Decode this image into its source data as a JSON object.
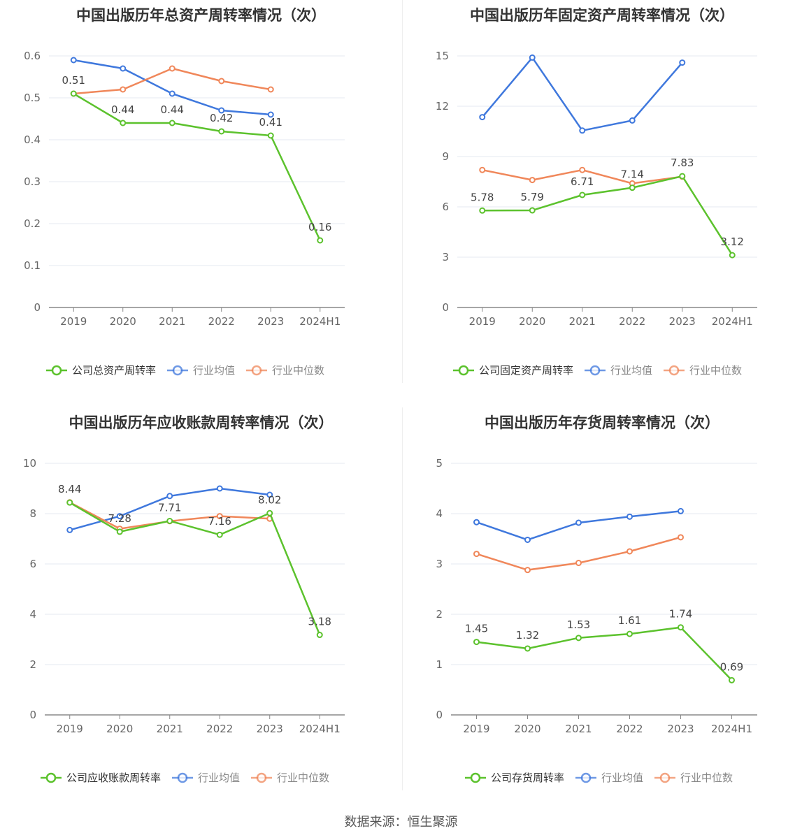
{
  "source": "数据来源：恒生聚源",
  "colors": {
    "company": "#5cc22d",
    "industry_avg": "#3f78dd",
    "industry_median": "#f0875a"
  },
  "chart_data": [
    {
      "type": "line",
      "title": "中国出版历年总资产周转率情况（次）",
      "categories": [
        "2019",
        "2020",
        "2021",
        "2022",
        "2023",
        "2024H1"
      ],
      "ylim": [
        0,
        0.6
      ],
      "yticks": [
        "0",
        "0.1",
        "0.2",
        "0.3",
        "0.4",
        "0.5",
        "0.6"
      ],
      "series": [
        {
          "name": "公司总资产周转率",
          "color": "#5cc22d",
          "values": [
            0.51,
            0.44,
            0.44,
            0.42,
            0.41,
            0.16
          ],
          "labels": [
            "0.51",
            "0.44",
            "0.44",
            "0.42",
            "0.41",
            "0.16"
          ]
        },
        {
          "name": "行业均值",
          "color": "#3f78dd",
          "values": [
            0.59,
            0.57,
            0.51,
            0.47,
            0.46,
            null
          ]
        },
        {
          "name": "行业中位数",
          "color": "#f0875a",
          "values": [
            0.51,
            0.52,
            0.57,
            0.54,
            0.52,
            null
          ]
        }
      ]
    },
    {
      "type": "line",
      "title": "中国出版历年固定资产周转率情况（次）",
      "categories": [
        "2019",
        "2020",
        "2021",
        "2022",
        "2023",
        "2024H1"
      ],
      "ylim": [
        0,
        15
      ],
      "yticks": [
        "0",
        "3",
        "6",
        "9",
        "12",
        "15"
      ],
      "series": [
        {
          "name": "公司固定资产周转率",
          "color": "#5cc22d",
          "values": [
            5.78,
            5.79,
            6.71,
            7.14,
            7.83,
            3.12
          ],
          "labels": [
            "5.78",
            "5.79",
            "6.71",
            "7.14",
            "7.83",
            "3.12"
          ]
        },
        {
          "name": "行业均值",
          "color": "#3f78dd",
          "values": [
            11.35,
            14.9,
            10.55,
            11.15,
            14.6,
            null
          ]
        },
        {
          "name": "行业中位数",
          "color": "#f0875a",
          "values": [
            8.2,
            7.6,
            8.2,
            7.4,
            7.8,
            null
          ]
        }
      ]
    },
    {
      "type": "line",
      "title": "中国出版历年应收账款周转率情况（次）",
      "categories": [
        "2019",
        "2020",
        "2021",
        "2022",
        "2023",
        "2024H1"
      ],
      "ylim": [
        0,
        10
      ],
      "yticks": [
        "0",
        "2",
        "4",
        "6",
        "8",
        "10"
      ],
      "series": [
        {
          "name": "公司应收账款周转率",
          "color": "#5cc22d",
          "values": [
            8.44,
            7.28,
            7.71,
            7.16,
            8.02,
            3.18
          ],
          "labels": [
            "8.44",
            "7.28",
            "7.71",
            "7.16",
            "8.02",
            "3.18"
          ]
        },
        {
          "name": "行业均值",
          "color": "#3f78dd",
          "values": [
            7.35,
            7.9,
            8.7,
            9.0,
            8.75,
            null
          ]
        },
        {
          "name": "行业中位数",
          "color": "#f0875a",
          "values": [
            8.45,
            7.4,
            7.7,
            7.9,
            7.8,
            null
          ]
        }
      ]
    },
    {
      "type": "line",
      "title": "中国出版历年存货周转率情况（次）",
      "categories": [
        "2019",
        "2020",
        "2021",
        "2022",
        "2023",
        "2024H1"
      ],
      "ylim": [
        0,
        5
      ],
      "yticks": [
        "0",
        "1",
        "2",
        "3",
        "4",
        "5"
      ],
      "series": [
        {
          "name": "公司存货周转率",
          "color": "#5cc22d",
          "values": [
            1.45,
            1.32,
            1.53,
            1.61,
            1.74,
            0.69
          ],
          "labels": [
            "1.45",
            "1.32",
            "1.53",
            "1.61",
            "1.74",
            "0.69"
          ]
        },
        {
          "name": "行业均值",
          "color": "#3f78dd",
          "values": [
            3.83,
            3.48,
            3.82,
            3.94,
            4.05,
            null
          ]
        },
        {
          "name": "行业中位数",
          "color": "#f0875a",
          "values": [
            3.2,
            2.88,
            3.02,
            3.25,
            3.53,
            null
          ]
        }
      ]
    }
  ]
}
